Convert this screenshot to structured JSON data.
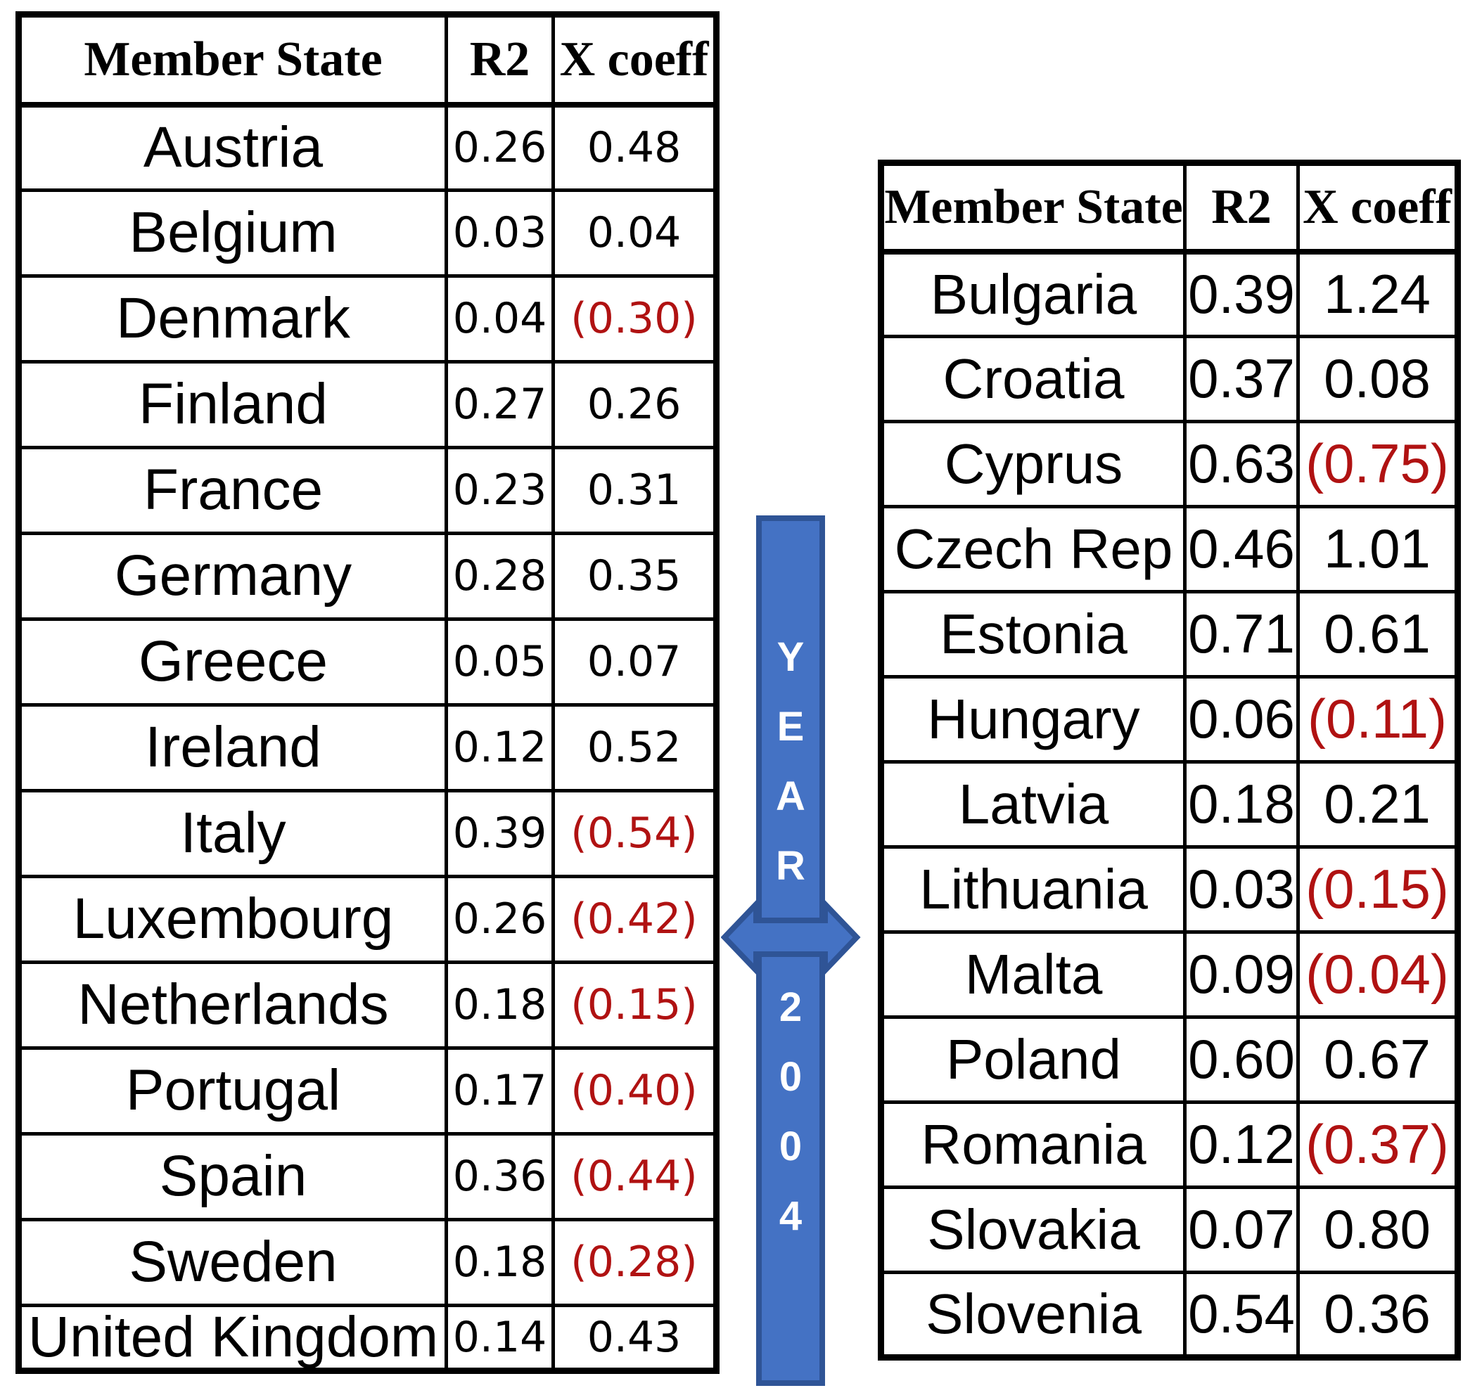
{
  "colors": {
    "text": "#000000",
    "table_border": "#000000",
    "negative_value": "#B01212",
    "background": "#FFFFFF"
  },
  "banner": {
    "word": "YEAR",
    "year": "2004",
    "fill": "#4472C4",
    "border": "#2F5496",
    "text_color": "#FFFFFF"
  },
  "chart_data": [
    {
      "type": "table",
      "columns": [
        "Member State",
        "R2",
        "X coeff"
      ],
      "rows": [
        [
          "Austria",
          "0.26",
          "0.48"
        ],
        [
          "Belgium",
          "0.03",
          "0.04"
        ],
        [
          "Denmark",
          "0.04",
          "(0.30)"
        ],
        [
          "Finland",
          "0.27",
          "0.26"
        ],
        [
          "France",
          "0.23",
          "0.31"
        ],
        [
          "Germany",
          "0.28",
          "0.35"
        ],
        [
          "Greece",
          "0.05",
          "0.07"
        ],
        [
          "Ireland",
          "0.12",
          "0.52"
        ],
        [
          "Italy",
          "0.39",
          "(0.54)"
        ],
        [
          "Luxembourg",
          "0.26",
          "(0.42)"
        ],
        [
          "Netherlands",
          "0.18",
          "(0.15)"
        ],
        [
          "Portugal",
          "0.17",
          "(0.40)"
        ],
        [
          "Spain",
          "0.36",
          "(0.44)"
        ],
        [
          "Sweden",
          "0.18",
          "(0.28)"
        ],
        [
          "United Kingdom",
          "0.14",
          "0.43"
        ]
      ],
      "negative_style": "red_parentheses"
    },
    {
      "type": "table",
      "columns": [
        "Member State",
        "R2",
        "X coeff"
      ],
      "rows": [
        [
          "Bulgaria",
          "0.39",
          "1.24"
        ],
        [
          "Croatia",
          "0.37",
          "0.08"
        ],
        [
          "Cyprus",
          "0.63",
          "(0.75)"
        ],
        [
          "Czech Rep",
          "0.46",
          "1.01"
        ],
        [
          "Estonia",
          "0.71",
          "0.61"
        ],
        [
          "Hungary",
          "0.06",
          "(0.11)"
        ],
        [
          "Latvia",
          "0.18",
          "0.21"
        ],
        [
          "Lithuania",
          "0.03",
          "(0.15)"
        ],
        [
          "Malta",
          "0.09",
          "(0.04)"
        ],
        [
          "Poland",
          "0.60",
          "0.67"
        ],
        [
          "Romania",
          "0.12",
          "(0.37)"
        ],
        [
          "Slovakia",
          "0.07",
          "0.80"
        ],
        [
          "Slovenia",
          "0.54",
          "0.36"
        ]
      ],
      "negative_style": "red_parentheses"
    }
  ]
}
